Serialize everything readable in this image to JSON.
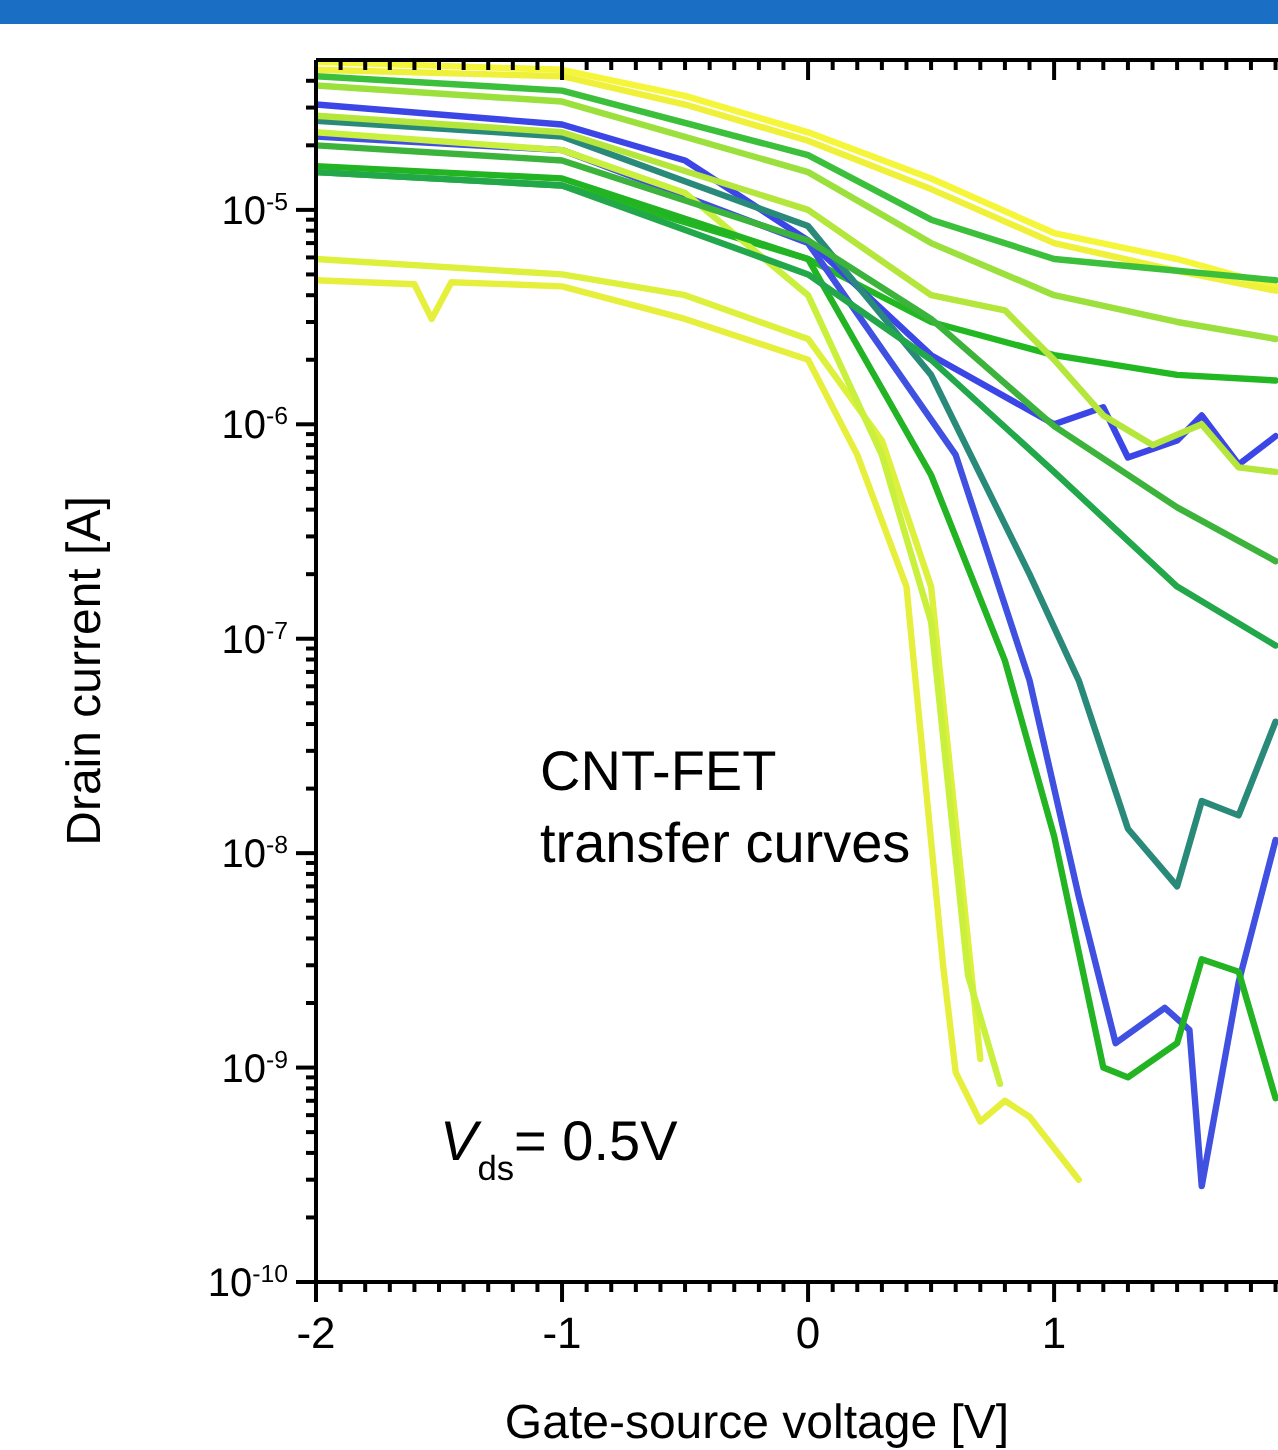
{
  "chart_data": {
    "type": "line",
    "xlabel": "Gate-source voltage [V]",
    "ylabel": "Drain current [A]",
    "log": "y",
    "xlim": [
      -2,
      1.91
    ],
    "ylim": [
      1e-10,
      5e-05
    ],
    "xticks": [
      -2,
      {
        "value": -1.9,
        "label": null
      },
      {
        "value": -1.8,
        "label": null
      },
      {
        "value": -1.7,
        "label": null
      },
      {
        "value": -1.6,
        "label": null
      },
      {
        "value": -1.5,
        "label": null
      },
      {
        "value": -1.4,
        "label": null
      },
      {
        "value": -1.3,
        "label": null
      },
      {
        "value": -1.2,
        "label": null
      },
      {
        "value": -1.1,
        "label": null
      },
      -1,
      {
        "value": -0.9,
        "label": null
      },
      {
        "value": -0.8,
        "label": null
      },
      {
        "value": -0.7,
        "label": null
      },
      {
        "value": -0.6,
        "label": null
      },
      {
        "value": -0.5,
        "label": null
      },
      {
        "value": -0.4,
        "label": null
      },
      {
        "value": -0.3,
        "label": null
      },
      {
        "value": -0.2,
        "label": null
      },
      {
        "value": -0.1,
        "label": null
      },
      0,
      {
        "value": 0.1,
        "label": null
      },
      {
        "value": 0.2,
        "label": null
      },
      {
        "value": 0.3,
        "label": null
      },
      {
        "value": 0.4,
        "label": null
      },
      {
        "value": 0.5,
        "label": null
      },
      {
        "value": 0.6,
        "label": null
      },
      {
        "value": 0.7,
        "label": null
      },
      {
        "value": 0.8,
        "label": null
      },
      {
        "value": 0.9,
        "label": null
      },
      1,
      {
        "value": 1.1,
        "label": null
      },
      {
        "value": 1.2,
        "label": null
      },
      {
        "value": 1.3,
        "label": null
      },
      {
        "value": 1.4,
        "label": null
      },
      {
        "value": 1.5,
        "label": null
      },
      {
        "value": 1.6,
        "label": null
      },
      {
        "value": 1.7,
        "label": null
      },
      {
        "value": 1.8,
        "label": null
      },
      {
        "value": 1.9,
        "label": null
      }
    ],
    "yticks": [
      {
        "value": 1e-10,
        "label": "10$^{-10}$"
      },
      {
        "value": 2e-10,
        "label": null
      },
      {
        "value": 3e-10,
        "label": null
      },
      {
        "value": 4e-10,
        "label": null
      },
      {
        "value": 5e-10,
        "label": null
      },
      {
        "value": 6e-10,
        "label": null
      },
      {
        "value": 7e-10,
        "label": null
      },
      {
        "value": 8e-10,
        "label": null
      },
      {
        "value": 9e-10,
        "label": null
      },
      {
        "value": 1e-09,
        "label": "10$^{-9}$"
      },
      {
        "value": 2e-09,
        "label": null
      },
      {
        "value": 3e-09,
        "label": null
      },
      {
        "value": 4e-09,
        "label": null
      },
      {
        "value": 5e-09,
        "label": null
      },
      {
        "value": 6e-09,
        "label": null
      },
      {
        "value": 7e-09,
        "label": null
      },
      {
        "value": 8e-09,
        "label": null
      },
      {
        "value": 9e-09,
        "label": null
      },
      {
        "value": 1e-08,
        "label": "10$^{-8}$"
      },
      {
        "value": 2e-08,
        "label": null
      },
      {
        "value": 3e-08,
        "label": null
      },
      {
        "value": 4e-08,
        "label": null
      },
      {
        "value": 5e-08,
        "label": null
      },
      {
        "value": 6e-08,
        "label": null
      },
      {
        "value": 7e-08,
        "label": null
      },
      {
        "value": 8e-08,
        "label": null
      },
      {
        "value": 9e-08,
        "label": null
      },
      {
        "value": 1e-07,
        "label": "10$^{-7}$"
      },
      {
        "value": 2e-07,
        "label": null
      },
      {
        "value": 3e-07,
        "label": null
      },
      {
        "value": 4e-07,
        "label": null
      },
      {
        "value": 5e-07,
        "label": null
      },
      {
        "value": 6e-07,
        "label": null
      },
      {
        "value": 7e-07,
        "label": null
      },
      {
        "value": 8e-07,
        "label": null
      },
      {
        "value": 9e-07,
        "label": null
      },
      {
        "value": 1e-06,
        "label": "10$^{-6}$"
      },
      {
        "value": 2e-06,
        "label": null
      },
      {
        "value": 3e-06,
        "label": null
      },
      {
        "value": 4e-06,
        "label": null
      },
      {
        "value": 5e-06,
        "label": null
      },
      {
        "value": 6e-06,
        "label": null
      },
      {
        "value": 7e-06,
        "label": null
      },
      {
        "value": 8e-06,
        "label": null
      },
      {
        "value": 9e-06,
        "label": null
      },
      {
        "value": 1e-05,
        "label": "10$^{-5}$"
      },
      {
        "value": 2e-05,
        "label": null
      },
      {
        "value": 3e-05,
        "label": null
      },
      {
        "value": 4e-05,
        "label": null
      }
    ],
    "annotations": [
      "CNT-FET\ntransfer curves",
      "V$_{ds}$= 0.5V"
    ],
    "series": [
      {
        "color": "#f5f53a",
        "x": [
          -2,
          -1,
          -0.5,
          0,
          0.5,
          1,
          1.5,
          1.9
        ],
        "values": [
          4.9e-05,
          4.5e-05,
          3.4e-05,
          2.3e-05,
          1.4e-05,
          7.8e-06,
          5.9e-06,
          4.4e-06
        ]
      },
      {
        "color": "#eef03a",
        "x": [
          -2,
          -1,
          -0.5,
          0,
          0.5,
          1,
          1.5,
          1.9
        ],
        "values": [
          4.5e-05,
          4.2e-05,
          3.1e-05,
          2.1e-05,
          1.25e-05,
          7e-06,
          5.2e-06,
          4.2e-06
        ]
      },
      {
        "color": "#3cc03c",
        "x": [
          -2,
          -1,
          0,
          0.5,
          1,
          1.5,
          1.9
        ],
        "values": [
          4.2e-05,
          3.6e-05,
          1.8e-05,
          9e-06,
          5.9e-06,
          5.2e-06,
          4.7e-06
        ]
      },
      {
        "color": "#9be03c",
        "x": [
          -2,
          -1,
          0,
          0.5,
          1,
          1.5,
          1.9
        ],
        "values": [
          3.8e-05,
          3.2e-05,
          1.5e-05,
          7e-06,
          4e-06,
          3e-06,
          2.5e-06
        ]
      },
      {
        "color": "#22b822",
        "x": [
          -2,
          -1,
          0,
          0.5,
          1,
          1.5,
          1.9
        ],
        "values": [
          1.5e-05,
          1.3e-05,
          5.9e-06,
          3e-06,
          2.1e-06,
          1.7e-06,
          1.6e-06
        ]
      },
      {
        "color": "#3c46e6",
        "x": [
          -2,
          -1,
          -0.5,
          0,
          0.5,
          1,
          1.2,
          1.3,
          1.5,
          1.6,
          1.75,
          1.9
        ],
        "values": [
          3.1e-05,
          2.5e-05,
          1.7e-05,
          7.2e-06,
          2.1e-06,
          1e-06,
          1.2e-06,
          7e-07,
          8.4e-07,
          1.1e-06,
          6.5e-07,
          8.8e-07
        ]
      },
      {
        "color": "#4050e0",
        "x": [
          -2,
          -1,
          0,
          0.6,
          0.9,
          1.1,
          1.25,
          1.45,
          1.55,
          1.6,
          1.75,
          1.9
        ],
        "values": [
          2.2e-05,
          1.9e-05,
          7e-06,
          7.2e-07,
          6.4e-08,
          6.3e-09,
          1.3e-09,
          1.9e-09,
          1.5e-09,
          2.8e-10,
          2.5e-09,
          1.15e-08
        ]
      },
      {
        "color": "#2a8a7a",
        "x": [
          -2,
          -1,
          0,
          0.5,
          0.9,
          1.1,
          1.3,
          1.5,
          1.6,
          1.75,
          1.9
        ],
        "values": [
          2.6e-05,
          2.2e-05,
          8.4e-06,
          1.7e-06,
          2e-07,
          6.4e-08,
          1.3e-08,
          7e-09,
          1.75e-08,
          1.5e-08,
          4.1e-08
        ]
      },
      {
        "color": "#e6f03c",
        "x": [
          -2,
          -1.6,
          -1.53,
          -1.45,
          -1,
          -0.5,
          0,
          0.2,
          0.4,
          0.55,
          0.6,
          0.7,
          0.8,
          0.9,
          1.1
        ],
        "values": [
          4.7e-06,
          4.5e-06,
          3.1e-06,
          4.6e-06,
          4.4e-06,
          3.1e-06,
          2e-06,
          7.2e-07,
          1.75e-07,
          2.9e-09,
          9.5e-10,
          5.6e-10,
          7e-10,
          5.9e-10,
          3e-10
        ]
      },
      {
        "color": "#dcf03c",
        "x": [
          -2,
          -1,
          -0.5,
          0,
          0.3,
          0.5,
          0.7
        ],
        "values": [
          5.9e-06,
          5e-06,
          4e-06,
          2.5e-06,
          8.4e-07,
          1.75e-07,
          1.1e-09
        ]
      },
      {
        "color": "#c8f03c",
        "x": [
          -2,
          -1,
          -0.5,
          0,
          0.3,
          0.5,
          0.65,
          0.78
        ],
        "values": [
          2.3e-05,
          1.9e-05,
          1.2e-05,
          4e-06,
          7.2e-07,
          1.2e-07,
          2.7e-09,
          8.4e-10
        ]
      },
      {
        "color": "#22b422",
        "x": [
          -2,
          -1,
          0,
          0.5,
          0.8,
          1,
          1.2,
          1.3,
          1.5,
          1.6,
          1.75,
          1.9
        ],
        "values": [
          1.6e-05,
          1.4e-05,
          5.9e-06,
          5.8e-07,
          7.9e-08,
          1.2e-08,
          1e-09,
          9e-10,
          1.3e-09,
          3.2e-09,
          2.8e-09,
          7.2e-10
        ]
      },
      {
        "color": "#3cb43c",
        "x": [
          -2,
          -1,
          0,
          0.5,
          1,
          1.5,
          1.9
        ],
        "values": [
          2e-05,
          1.7e-05,
          7.2e-06,
          3.1e-06,
          9.8e-07,
          4.1e-07,
          2.3e-07
        ]
      },
      {
        "color": "#22a84a",
        "x": [
          -2,
          -1,
          0,
          0.5,
          1,
          1.5,
          1.9
        ],
        "values": [
          1.5e-05,
          1.3e-05,
          5e-06,
          2e-06,
          6e-07,
          1.75e-07,
          9.3e-08
        ]
      },
      {
        "color": "#b4e63c",
        "x": [
          -2,
          -1,
          0,
          0.5,
          0.8,
          1,
          1.2,
          1.4,
          1.6,
          1.75,
          1.9
        ],
        "values": [
          2.75e-05,
          2.3e-05,
          1e-05,
          4e-06,
          3.4e-06,
          2e-06,
          1.1e-06,
          8e-07,
          1e-06,
          6.3e-07,
          6e-07
        ]
      }
    ]
  }
}
